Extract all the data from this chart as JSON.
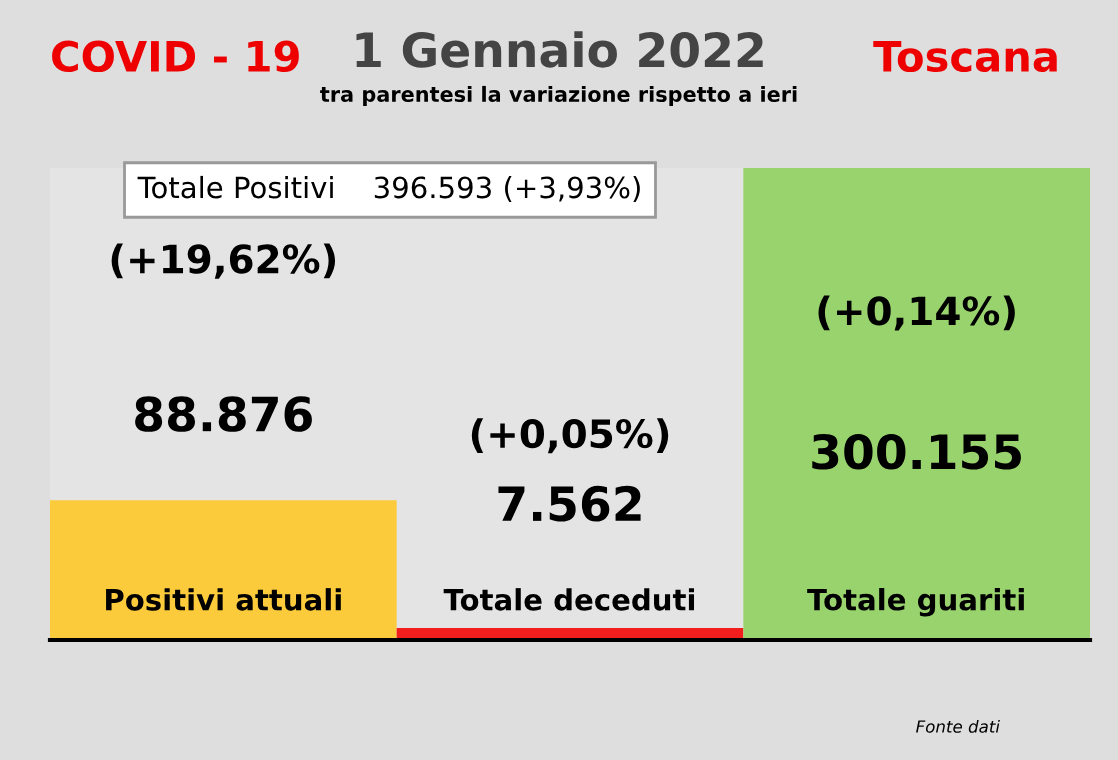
{
  "chart_data": {
    "type": "bar",
    "title": "1 Gennaio 2022",
    "subtitle": "tra parentesi la variazione rispetto a ieri",
    "annotations": [
      "COVID - 19",
      "Toscana",
      "Totale Positivi    396.593 (+3,93%)",
      "(+19,62%)",
      "(+0,05%)",
      "(+0,14%)",
      "Fonte dati"
    ],
    "categories": [
      "Positivi attuali",
      "Totale deceduti",
      "Totale guariti"
    ],
    "values": [
      88876,
      7562,
      300155
    ],
    "colors": [
      "#fccb3c",
      "#f21d1d",
      "#99d36d"
    ],
    "value_labels": [
      "88.876",
      "7.562",
      "300.155"
    ]
  }
}
